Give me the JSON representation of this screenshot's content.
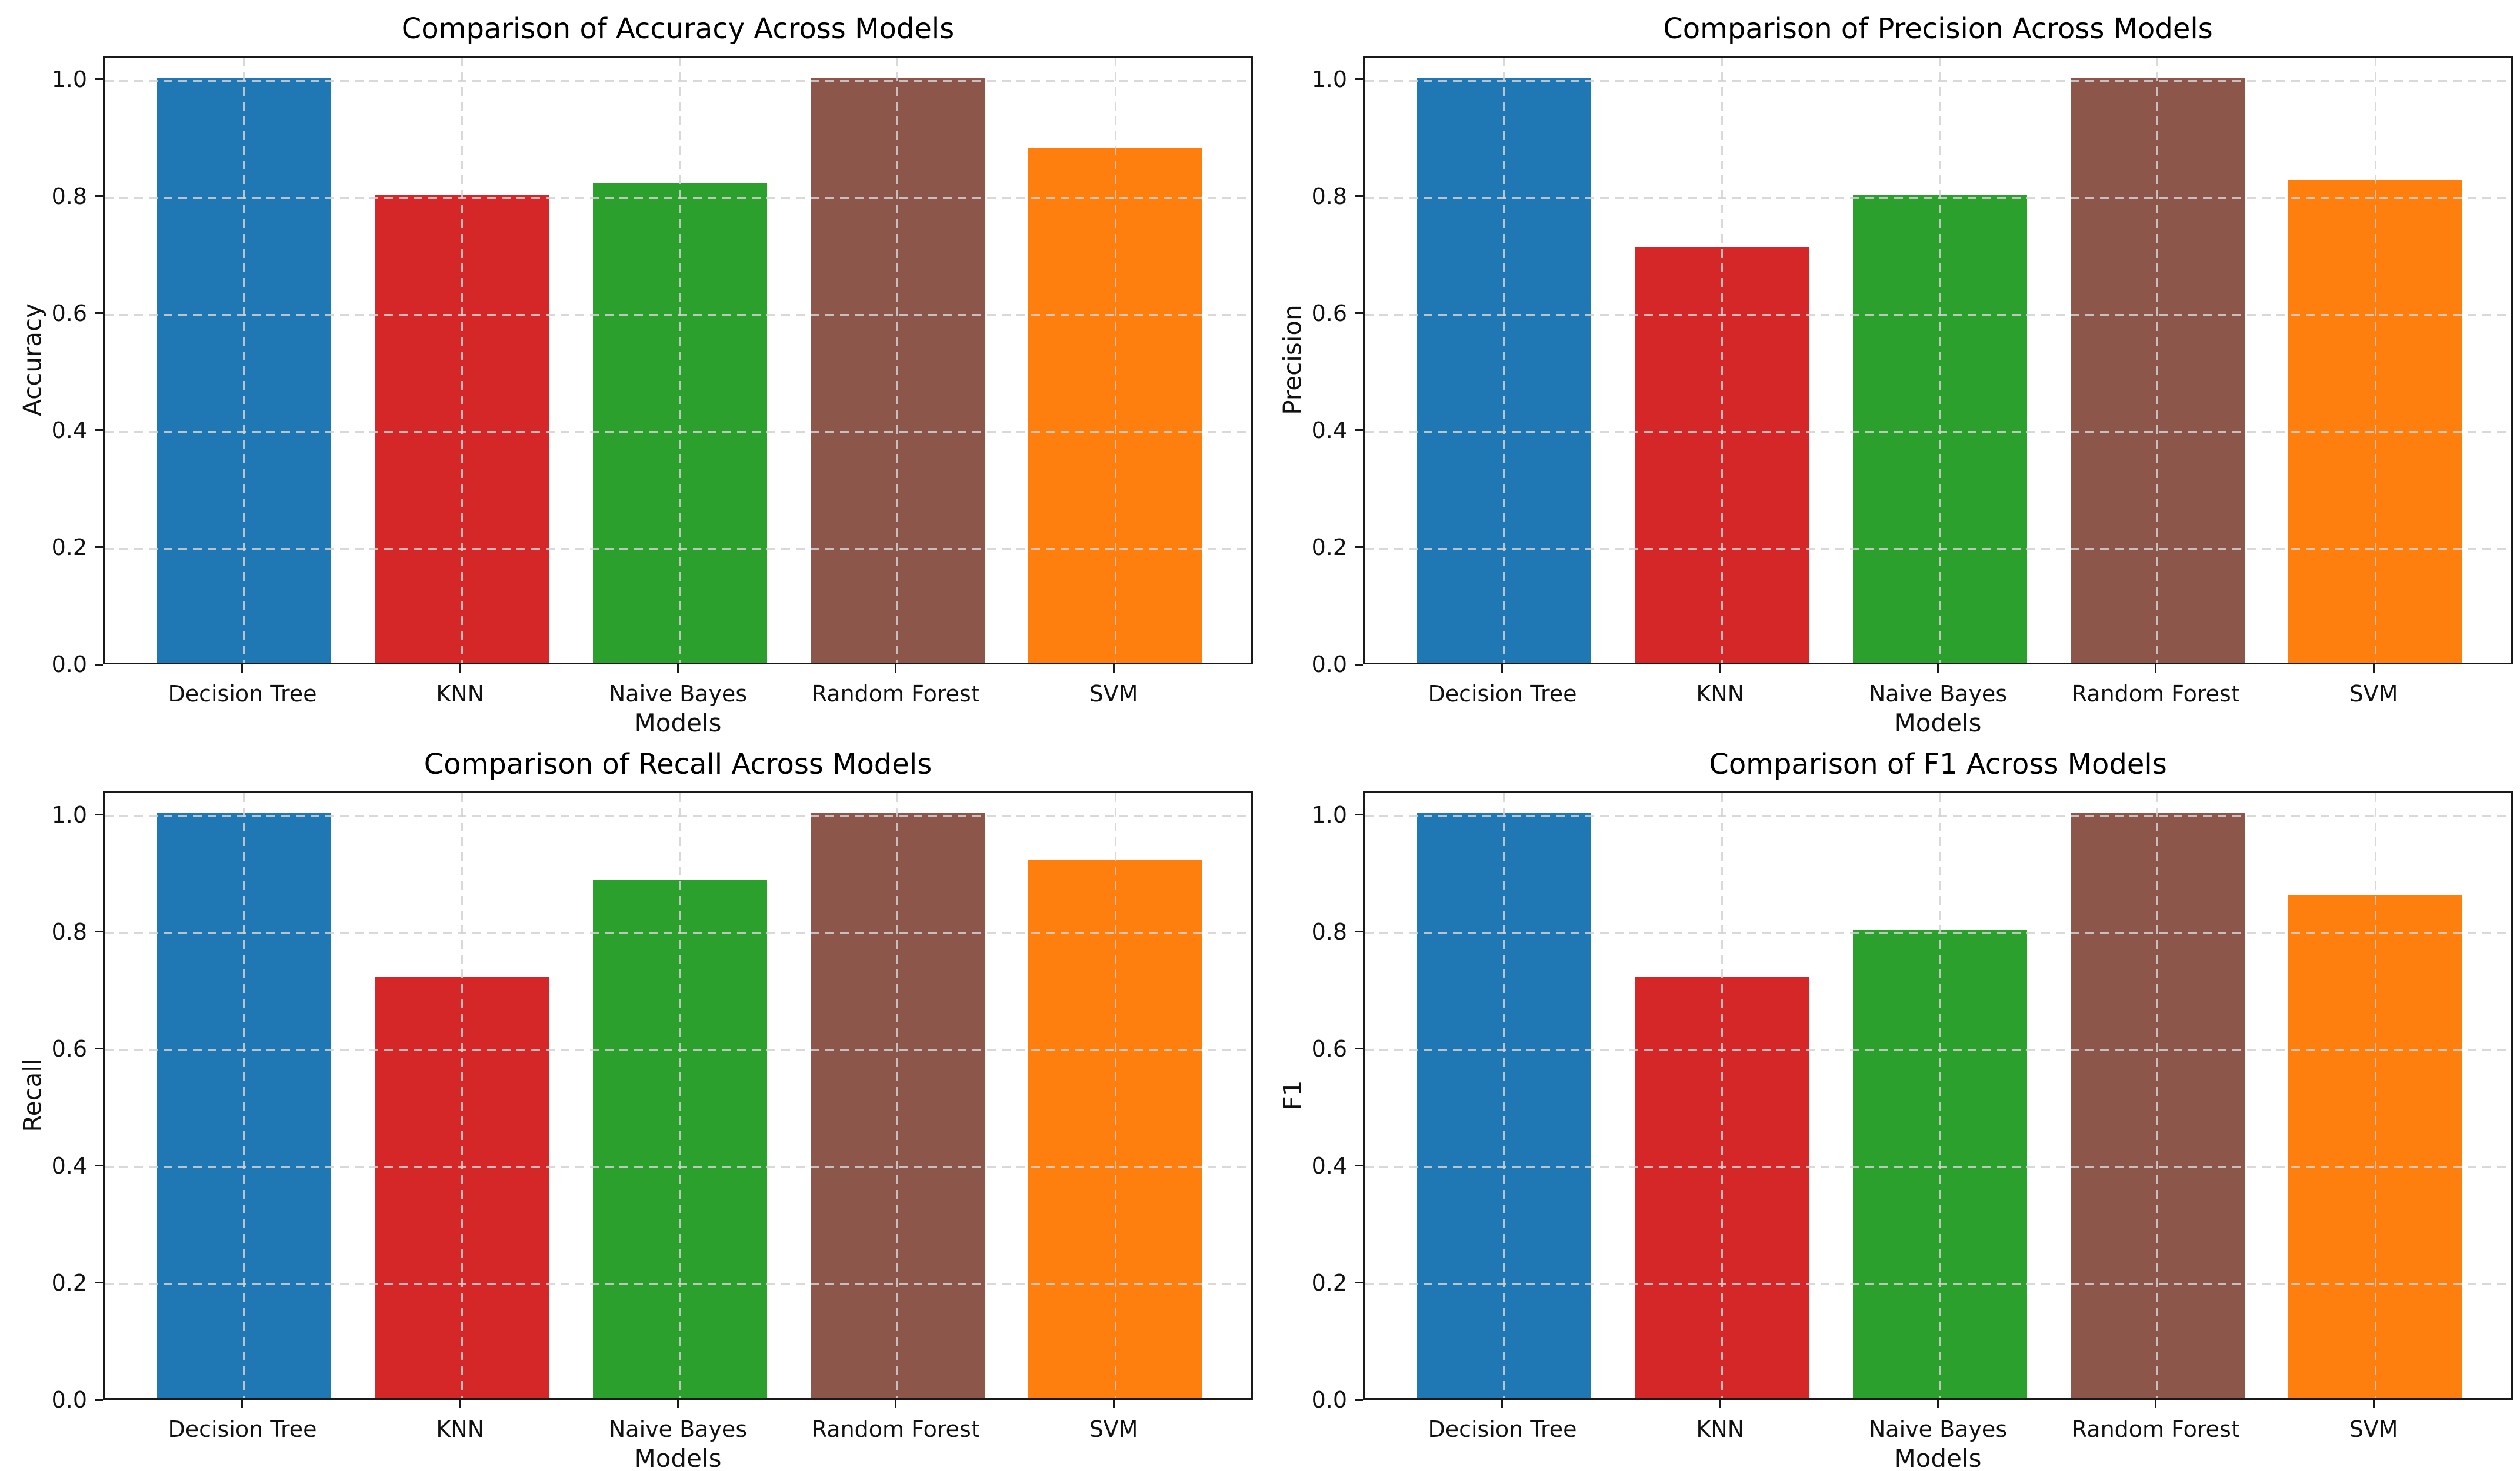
{
  "figure": {
    "background": "#ffffff",
    "spine_color": "#1a1a1a",
    "grid_color": "#d2d2d2",
    "text_color": "#111111",
    "grid_style": "dashed, both axes, drawn above bars"
  },
  "chart_data": [
    {
      "type": "bar",
      "title": "Comparison of Accuracy Across Models",
      "xlabel": "Models",
      "ylabel": "Accuracy",
      "categories": [
        "Decision Tree",
        "KNN",
        "Naive Bayes",
        "Random Forest",
        "SVM"
      ],
      "values": [
        1.0,
        0.8,
        0.82,
        1.0,
        0.88
      ],
      "bar_colors": [
        "#1f77b4",
        "#d62728",
        "#2ca02c",
        "#8c564b",
        "#ff7f0e"
      ],
      "ylim": [
        0,
        1.04
      ],
      "yticks": [
        0,
        0.2,
        0.4,
        0.6,
        0.8,
        1.0
      ],
      "ytick_labels": [
        "0.0",
        "0.2",
        "0.4",
        "0.6",
        "0.8",
        "1.0"
      ],
      "grid": true,
      "legend": "none"
    },
    {
      "type": "bar",
      "title": "Comparison of Precision Across Models",
      "xlabel": "Models",
      "ylabel": "Precision",
      "categories": [
        "Decision Tree",
        "KNN",
        "Naive Bayes",
        "Random Forest",
        "SVM"
      ],
      "values": [
        1.0,
        0.71,
        0.8,
        1.0,
        0.825
      ],
      "bar_colors": [
        "#1f77b4",
        "#d62728",
        "#2ca02c",
        "#8c564b",
        "#ff7f0e"
      ],
      "ylim": [
        0,
        1.04
      ],
      "yticks": [
        0,
        0.2,
        0.4,
        0.6,
        0.8,
        1.0
      ],
      "ytick_labels": [
        "0.0",
        "0.2",
        "0.4",
        "0.6",
        "0.8",
        "1.0"
      ],
      "grid": true,
      "legend": "none"
    },
    {
      "type": "bar",
      "title": "Comparison of Recall Across Models",
      "xlabel": "Models",
      "ylabel": "Recall",
      "categories": [
        "Decision Tree",
        "KNN",
        "Naive Bayes",
        "Random Forest",
        "SVM"
      ],
      "values": [
        1.0,
        0.72,
        0.885,
        1.0,
        0.92
      ],
      "bar_colors": [
        "#1f77b4",
        "#d62728",
        "#2ca02c",
        "#8c564b",
        "#ff7f0e"
      ],
      "ylim": [
        0,
        1.04
      ],
      "yticks": [
        0,
        0.2,
        0.4,
        0.6,
        0.8,
        1.0
      ],
      "ytick_labels": [
        "0.0",
        "0.2",
        "0.4",
        "0.6",
        "0.8",
        "1.0"
      ],
      "grid": true,
      "legend": "none"
    },
    {
      "type": "bar",
      "title": "Comparison of F1 Across Models",
      "xlabel": "Models",
      "ylabel": "F1",
      "categories": [
        "Decision Tree",
        "KNN",
        "Naive Bayes",
        "Random Forest",
        "SVM"
      ],
      "values": [
        1.0,
        0.72,
        0.8,
        1.0,
        0.86
      ],
      "bar_colors": [
        "#1f77b4",
        "#d62728",
        "#2ca02c",
        "#8c564b",
        "#ff7f0e"
      ],
      "ylim": [
        0,
        1.04
      ],
      "yticks": [
        0,
        0.2,
        0.4,
        0.6,
        0.8,
        1.0
      ],
      "ytick_labels": [
        "0.0",
        "0.2",
        "0.4",
        "0.6",
        "0.8",
        "1.0"
      ],
      "grid": true,
      "legend": "none"
    }
  ]
}
